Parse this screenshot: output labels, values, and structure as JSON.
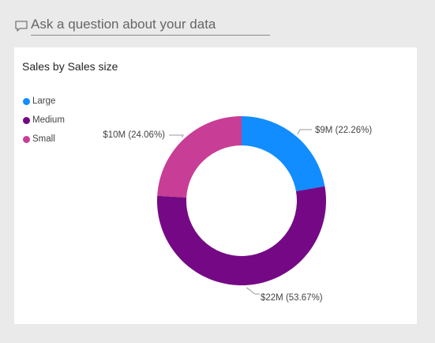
{
  "qa": {
    "placeholder": "Ask a question about your data",
    "icon": "chat-bubble-icon"
  },
  "card": {
    "title": "Sales by Sales size"
  },
  "legend": [
    {
      "label": "Large",
      "color": "#118dff"
    },
    {
      "label": "Medium",
      "color": "#750985"
    },
    {
      "label": "Small",
      "color": "#c83d95"
    }
  ],
  "chart_data": {
    "type": "pie",
    "variant": "donut",
    "title": "Sales by Sales size",
    "legend_position": "top-left",
    "slices": [
      {
        "name": "Large",
        "value": 9,
        "percent": 22.26,
        "label": "$9M (22.26%)",
        "color": "#118dff"
      },
      {
        "name": "Medium",
        "value": 22,
        "percent": 53.67,
        "label": "$22M (53.67%)",
        "color": "#750985"
      },
      {
        "name": "Small",
        "value": 10,
        "percent": 24.06,
        "label": "$10M (24.06%)",
        "color": "#c83d95"
      }
    ],
    "unit": "$M"
  }
}
